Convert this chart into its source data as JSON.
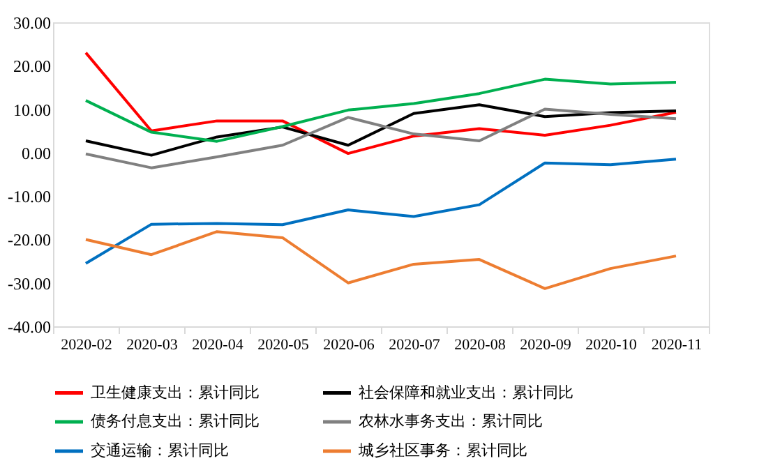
{
  "chart_data": {
    "type": "line",
    "categories": [
      "2020-02",
      "2020-03",
      "2020-04",
      "2020-05",
      "2020-06",
      "2020-07",
      "2020-08",
      "2020-09",
      "2020-10",
      "2020-11"
    ],
    "ylim": [
      -40,
      30
    ],
    "yticks": [
      {
        "value": -40,
        "label": "-40.00"
      },
      {
        "value": -30,
        "label": "-30.00"
      },
      {
        "value": -20,
        "label": "-20.00"
      },
      {
        "value": -10,
        "label": "-10.00"
      },
      {
        "value": 0,
        "label": "0.00"
      },
      {
        "value": 10,
        "label": "10.00"
      },
      {
        "value": 20,
        "label": "20.00"
      },
      {
        "value": 30,
        "label": "30.00"
      }
    ],
    "grid": false,
    "legend": "bottom",
    "marker": "none",
    "line_style": "solid",
    "series": [
      {
        "name": "卫生健康支出：累计同比",
        "color": "#ff0000",
        "values": [
          23,
          5,
          7.3,
          7.3,
          -0.2,
          3.8,
          5.5,
          4,
          6.3,
          9.3
        ]
      },
      {
        "name": "社会保障和就业支出：累计同比",
        "color": "#000000",
        "values": [
          2.7,
          -0.6,
          3.6,
          5.9,
          1.7,
          9,
          11,
          8.3,
          9.2,
          9.6
        ]
      },
      {
        "name": "债务付息支出：累计同比",
        "color": "#00b050",
        "values": [
          12,
          4.7,
          2.6,
          6,
          9.8,
          11.3,
          13.6,
          16.9,
          15.8,
          16.2
        ]
      },
      {
        "name": "农林水事务支出：累计同比",
        "color": "#808080",
        "values": [
          -0.3,
          -3.5,
          -1,
          1.7,
          8.1,
          4.3,
          2.7,
          10,
          8.8,
          7.8
        ]
      },
      {
        "name": "交通运输：累计同比",
        "color": "#0070c0",
        "values": [
          -25.5,
          -16.5,
          -16.3,
          -16.6,
          -13.2,
          -14.7,
          -12,
          -2.4,
          -2.8,
          -1.5
        ]
      },
      {
        "name": "城乡社区事务：累计同比",
        "color": "#ed7d31",
        "values": [
          -20,
          -23.5,
          -18.2,
          -19.6,
          -30,
          -25.7,
          -24.6,
          -31.3,
          -26.7,
          -23.8
        ]
      }
    ]
  }
}
